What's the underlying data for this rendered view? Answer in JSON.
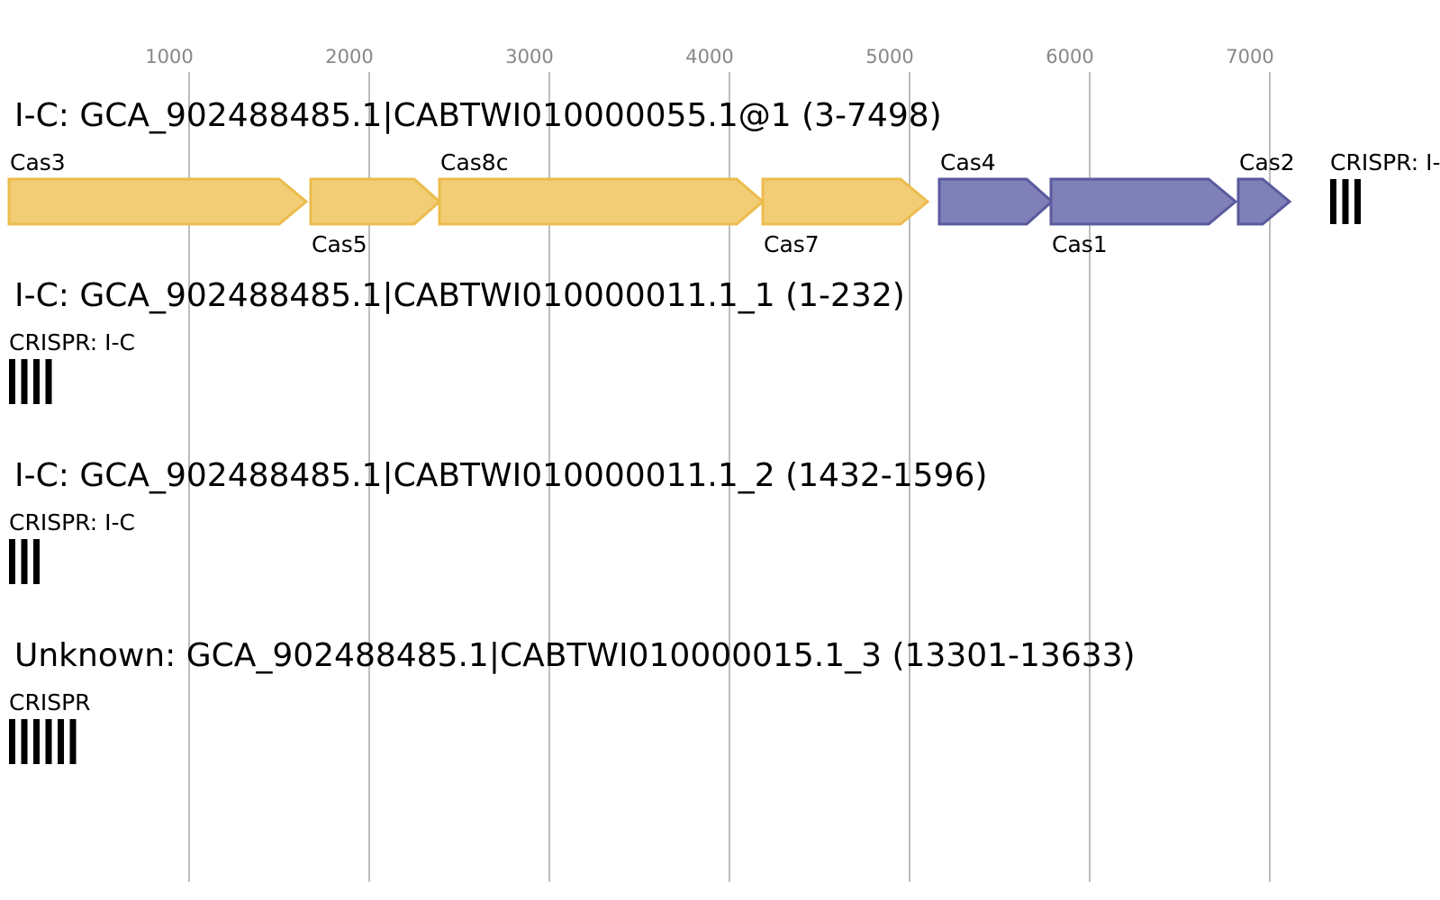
{
  "axis": {
    "ticks": [
      {
        "label": "1000"
      },
      {
        "label": "2000"
      },
      {
        "label": "3000"
      },
      {
        "label": "4000"
      },
      {
        "label": "5000"
      },
      {
        "label": "6000"
      },
      {
        "label": "7000"
      }
    ]
  },
  "colors": {
    "type_i_c_yellow": "#f2cd76",
    "type_i_c_yellow_stroke": "#ecbc4c",
    "adaptation_purple": "#8080b8",
    "adaptation_purple_stroke": "#5a5a9e",
    "crispr_bar": "#000000",
    "grid": "#bdbdbd",
    "tick_text": "#888888"
  },
  "tracks": [
    {
      "title": "I-C: GCA_902488485.1|CABTWI010000055.1@1 (3-7498)",
      "genes": [
        {
          "label": "Cas3",
          "color": "type_i_c_yellow",
          "label_pos": "above"
        },
        {
          "label": "Cas5",
          "color": "type_i_c_yellow",
          "label_pos": "below"
        },
        {
          "label": "Cas8c",
          "color": "type_i_c_yellow",
          "label_pos": "above"
        },
        {
          "label": "Cas7",
          "color": "type_i_c_yellow",
          "label_pos": "below"
        },
        {
          "label": "Cas4",
          "color": "adaptation_purple",
          "label_pos": "above"
        },
        {
          "label": "Cas1",
          "color": "adaptation_purple",
          "label_pos": "below"
        },
        {
          "label": "Cas2",
          "color": "adaptation_purple",
          "label_pos": "above"
        }
      ],
      "crispr": {
        "label": "CRISPR: I-C",
        "repeats": 3
      }
    },
    {
      "title": "I-C: GCA_902488485.1|CABTWI010000011.1_1 (1-232)",
      "genes": [],
      "crispr": {
        "label": "CRISPR: I-C",
        "repeats": 4
      }
    },
    {
      "title": "I-C: GCA_902488485.1|CABTWI010000011.1_2 (1432-1596)",
      "genes": [],
      "crispr": {
        "label": "CRISPR: I-C",
        "repeats": 3
      }
    },
    {
      "title": "Unknown: GCA_902488485.1|CABTWI010000015.1_3 (13301-13633)",
      "genes": [],
      "crispr": {
        "label": "CRISPR",
        "repeats": 6
      }
    }
  ]
}
